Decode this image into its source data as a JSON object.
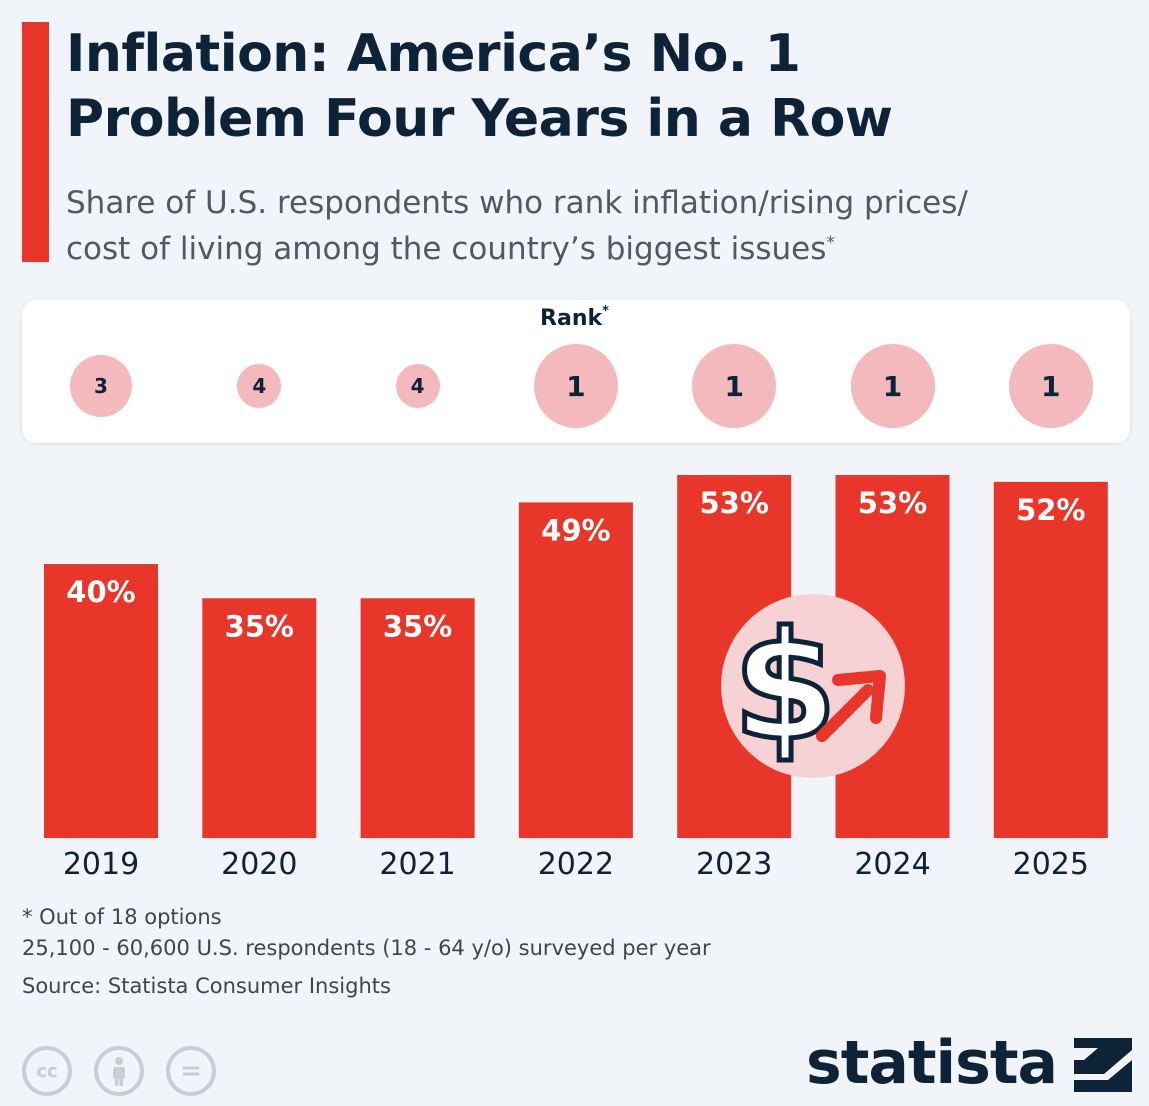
{
  "title_lines": [
    "Inflation: America’s No. 1",
    "Problem Four Years in a Row"
  ],
  "subtitle_lines": [
    "Share of U.S. respondents who rank inflation/rising prices/",
    "cost of living among the country’s biggest issues"
  ],
  "subtitle_marker": "*",
  "rank_panel": {
    "label": "Rank",
    "marker": "*",
    "ranks": [
      3,
      4,
      4,
      1,
      1,
      1,
      1
    ]
  },
  "chart_data": {
    "type": "bar",
    "categories": [
      "2019",
      "2020",
      "2021",
      "2022",
      "2023",
      "2024",
      "2025"
    ],
    "values": [
      40,
      35,
      35,
      49,
      53,
      53,
      52
    ],
    "value_labels": [
      "40%",
      "35%",
      "35%",
      "49%",
      "53%",
      "53%",
      "52%"
    ],
    "unit": "%",
    "bar_color": "#e8372a",
    "ylim": [
      0,
      53
    ],
    "grid": false
  },
  "illustration": {
    "icon": "dollar-rising-arrow-icon",
    "glyph": "$"
  },
  "footnotes": [
    "* Out of 18 options",
    "25,100 - 60,600 U.S. respondents (18 - 64 y/o) surveyed per year",
    "Source: Statista Consumer Insights"
  ],
  "license_icons": [
    {
      "icon": "creative-commons-icon",
      "text": "cc"
    },
    {
      "icon": "attribution-icon",
      "text": ""
    },
    {
      "icon": "no-derivatives-icon",
      "text": "="
    }
  ],
  "brand": "statista",
  "colors": {
    "accent": "#e8372a",
    "rank_circle": "#f3b9bd",
    "title": "#0e2338",
    "background": "#f1f4f8"
  }
}
